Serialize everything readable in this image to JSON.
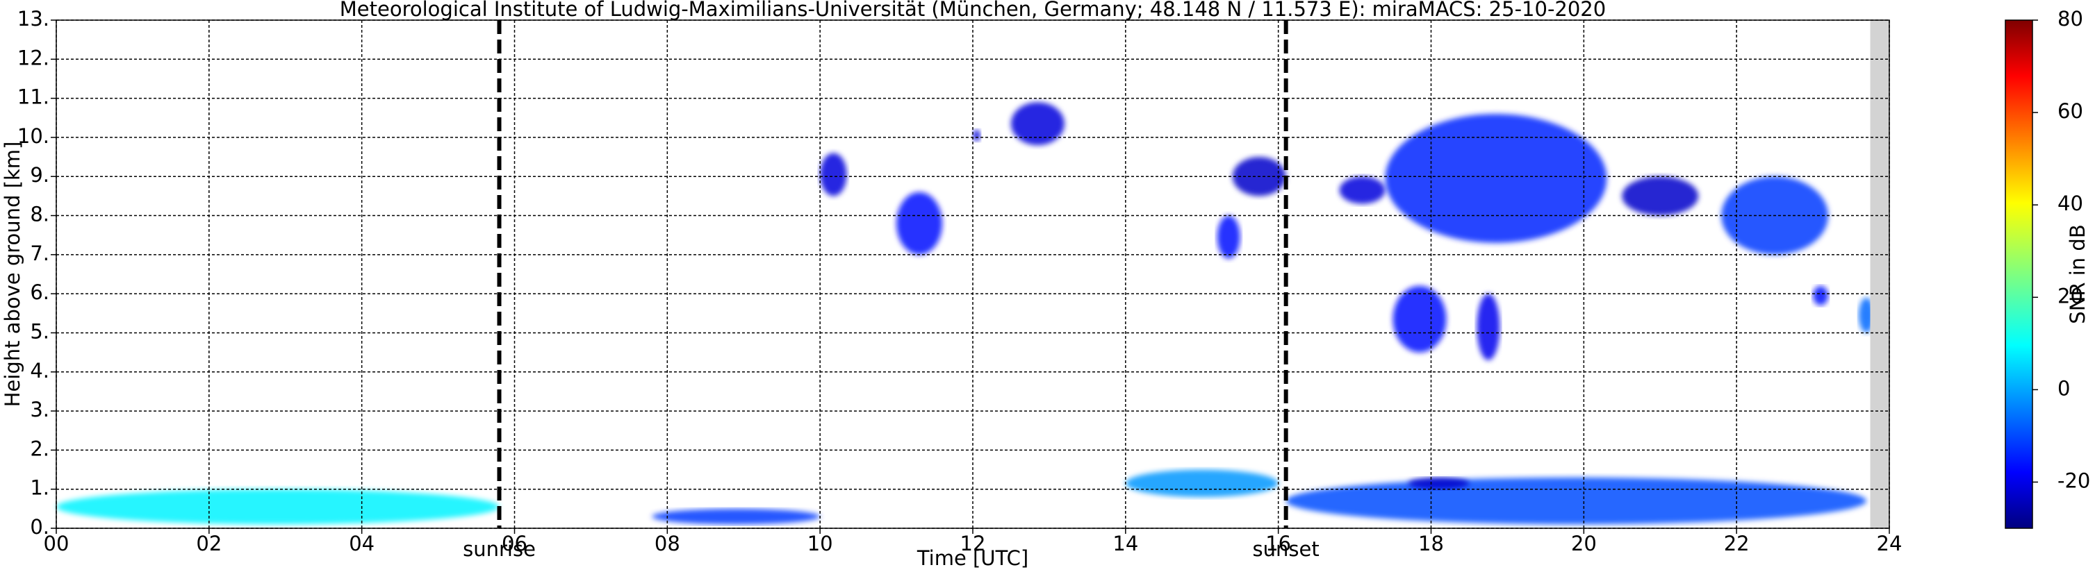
{
  "chart_data": {
    "type": "heatmap",
    "title": "Meteorological Institute of Ludwig-Maximilians-Universität (München, Germany; 48.148 N / 11.573 E):    miraMACS: 25-10-2020",
    "x_label": "Time [UTC]",
    "y_label": "Height above ground [km]",
    "colorbar_label": "SNR in dB",
    "xlim": [
      0,
      24
    ],
    "ylim": [
      0,
      13
    ],
    "clim": [
      -30,
      80
    ],
    "xticks": [
      {
        "value": 0,
        "label": "00"
      },
      {
        "value": 2,
        "label": "02"
      },
      {
        "value": 4,
        "label": "04"
      },
      {
        "value": 6,
        "label": "06"
      },
      {
        "value": 8,
        "label": "08"
      },
      {
        "value": 10,
        "label": "10"
      },
      {
        "value": 12,
        "label": "12"
      },
      {
        "value": 14,
        "label": "14"
      },
      {
        "value": 16,
        "label": "16"
      },
      {
        "value": 18,
        "label": "18"
      },
      {
        "value": 20,
        "label": "20"
      },
      {
        "value": 22,
        "label": "22"
      },
      {
        "value": 24,
        "label": "24"
      }
    ],
    "yticks": [
      {
        "value": 0,
        "label": "0."
      },
      {
        "value": 1,
        "label": "1."
      },
      {
        "value": 2,
        "label": "2."
      },
      {
        "value": 3,
        "label": "3."
      },
      {
        "value": 4,
        "label": "4."
      },
      {
        "value": 5,
        "label": "5."
      },
      {
        "value": 6,
        "label": "6."
      },
      {
        "value": 7,
        "label": "7."
      },
      {
        "value": 8,
        "label": "8."
      },
      {
        "value": 9,
        "label": "9."
      },
      {
        "value": 10,
        "label": "10."
      },
      {
        "value": 11,
        "label": "11."
      },
      {
        "value": 12,
        "label": "12."
      },
      {
        "value": 13,
        "label": "13."
      }
    ],
    "cticks": [
      -20,
      0,
      20,
      40,
      60,
      80
    ],
    "grid": true,
    "annotations": [
      {
        "x": 5.8,
        "label": "sunrise"
      },
      {
        "x": 16.1,
        "label": "sunset"
      }
    ],
    "missing_x": [
      23.75,
      24
    ],
    "echoes": [
      {
        "x": [
          10.0,
          10.35
        ],
        "y": [
          8.5,
          9.6
        ],
        "value": -20
      },
      {
        "x": [
          11.0,
          11.6
        ],
        "y": [
          7.0,
          8.6
        ],
        "value": -15
      },
      {
        "x": [
          12.0,
          12.1
        ],
        "y": [
          9.9,
          10.2
        ],
        "value": -20
      },
      {
        "x": [
          12.5,
          13.2
        ],
        "y": [
          9.8,
          10.9
        ],
        "value": -20
      },
      {
        "x": [
          15.2,
          15.5
        ],
        "y": [
          6.9,
          8.0
        ],
        "value": -15
      },
      {
        "x": [
          15.4,
          16.1
        ],
        "y": [
          8.5,
          9.5
        ],
        "value": -22
      },
      {
        "x": [
          16.8,
          17.4
        ],
        "y": [
          8.3,
          9.0
        ],
        "value": -20
      },
      {
        "x": [
          17.4,
          20.3
        ],
        "y": [
          7.3,
          10.6
        ],
        "value": -12
      },
      {
        "x": [
          20.5,
          21.5
        ],
        "y": [
          8.0,
          9.0
        ],
        "value": -22
      },
      {
        "x": [
          21.8,
          23.2
        ],
        "y": [
          7.0,
          9.0
        ],
        "value": -10
      },
      {
        "x": [
          17.5,
          18.2
        ],
        "y": [
          4.5,
          6.2
        ],
        "value": -15
      },
      {
        "x": [
          18.6,
          18.9
        ],
        "y": [
          4.3,
          6.0
        ],
        "value": -18
      },
      {
        "x": [
          23.0,
          23.2
        ],
        "y": [
          5.7,
          6.2
        ],
        "value": -15
      },
      {
        "x": [
          23.6,
          23.8
        ],
        "y": [
          5.0,
          5.9
        ],
        "value": -5
      },
      {
        "x": [
          0.0,
          5.8
        ],
        "y": [
          0.1,
          1.0
        ],
        "value": 10
      },
      {
        "x": [
          7.8,
          10.0
        ],
        "y": [
          0.1,
          0.5
        ],
        "value": -10
      },
      {
        "x": [
          14.0,
          16.0
        ],
        "y": [
          0.8,
          1.5
        ],
        "value": 0
      },
      {
        "x": [
          16.1,
          23.7
        ],
        "y": [
          0.1,
          1.3
        ],
        "value": -8
      },
      {
        "x": [
          17.7,
          18.5
        ],
        "y": [
          1.0,
          1.3
        ],
        "value": -22
      }
    ]
  }
}
